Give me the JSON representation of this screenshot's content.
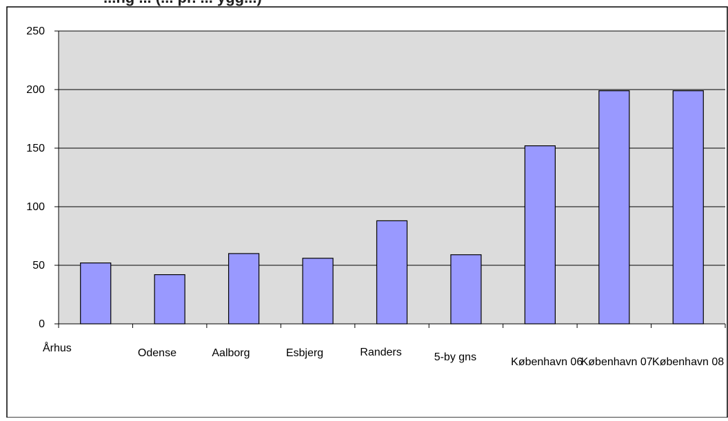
{
  "title": "...ng ... (... pr. ... ygg...)",
  "colors": {
    "plot_background": "#dcdcdc",
    "bar_fill": "#9999ff",
    "bar_stroke": "#000000",
    "gridline": "#000000",
    "frame": "#000000",
    "title": "#1f1f1f"
  },
  "chart_data": {
    "type": "bar",
    "title": "",
    "xlabel": "",
    "ylabel": "",
    "categories": [
      "Århus",
      "Odense",
      "Aalborg",
      "Esbjerg",
      "Randers",
      "5-by gns",
      "København 06",
      "København 07",
      "København 08"
    ],
    "series": [
      {
        "values": [
          52,
          42,
          60,
          56,
          88,
          59,
          152,
          199,
          199
        ]
      }
    ],
    "ylim": [
      0,
      250
    ],
    "yticks": [
      0,
      50,
      100,
      150,
      200,
      250
    ],
    "grid": true,
    "legend": "none"
  }
}
